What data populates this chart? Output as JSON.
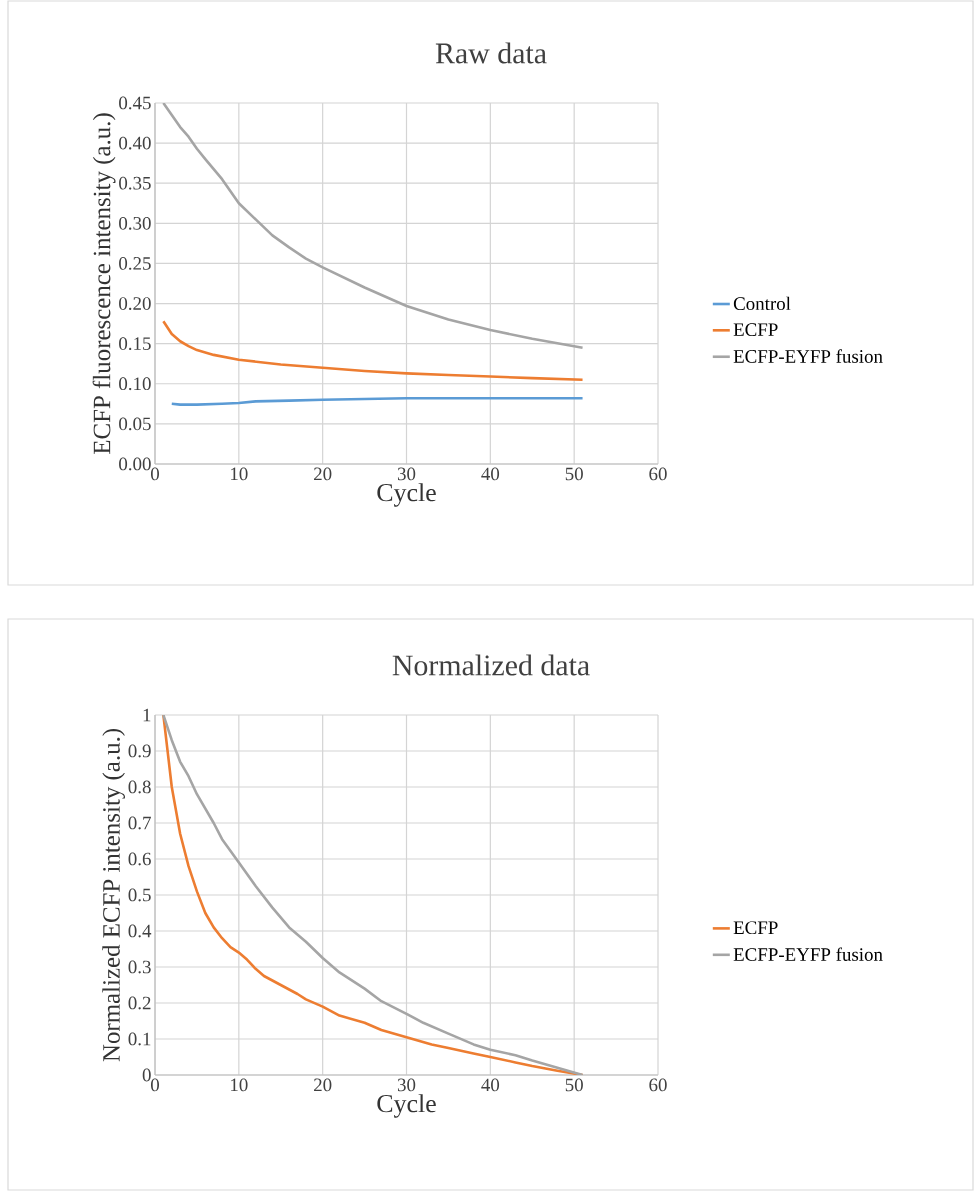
{
  "chart_data": [
    {
      "type": "line",
      "title": "Raw data",
      "xlabel": "Cycle",
      "ylabel": "ECFP fluorescence intensity (a.u.)",
      "xlim": [
        0,
        60
      ],
      "xticks": [
        0,
        10,
        20,
        30,
        40,
        50,
        60
      ],
      "ylim": [
        0,
        0.45
      ],
      "yticks": [
        {
          "value": 0,
          "label": "0.00"
        },
        0.05,
        {
          "value": 0.1,
          "label": "0.10"
        },
        0.15,
        {
          "value": 0.2,
          "label": "0.20"
        },
        0.25,
        {
          "value": 0.3,
          "label": "0.30"
        },
        0.35,
        {
          "value": 0.4,
          "label": "0.40"
        },
        0.45
      ],
      "grid": true,
      "legend": "right",
      "marker": "none",
      "series": [
        {
          "name": "Control",
          "color": "#5b9bd5",
          "x": [
            2,
            3,
            5,
            8,
            10,
            12,
            16,
            20,
            25,
            30,
            40,
            51
          ],
          "values": [
            0.075,
            0.074,
            0.074,
            0.075,
            0.076,
            0.078,
            0.079,
            0.08,
            0.081,
            0.082,
            0.082,
            0.082
          ]
        },
        {
          "name": "ECFP",
          "color": "#ed7d31",
          "x": [
            1,
            2,
            3,
            4,
            5,
            7,
            10,
            15,
            20,
            25,
            30,
            35,
            40,
            45,
            51
          ],
          "values": [
            0.178,
            0.162,
            0.153,
            0.147,
            0.142,
            0.136,
            0.13,
            0.124,
            0.12,
            0.116,
            0.113,
            0.111,
            0.109,
            0.107,
            0.105
          ]
        },
        {
          "name": "ECFP-EYFP fusion",
          "color": "#a5a5a5",
          "x": [
            1,
            2,
            3,
            4,
            5,
            6,
            8,
            10,
            12,
            14,
            16,
            18,
            20,
            25,
            30,
            35,
            40,
            45,
            51
          ],
          "values": [
            0.45,
            0.435,
            0.42,
            0.408,
            0.393,
            0.38,
            0.355,
            0.325,
            0.305,
            0.285,
            0.27,
            0.256,
            0.245,
            0.22,
            0.197,
            0.18,
            0.167,
            0.156,
            0.145
          ]
        }
      ]
    },
    {
      "type": "line",
      "title": "Normalized data",
      "xlabel": "Cycle",
      "ylabel": "Normalized ECFP intensity (a.u.)",
      "xlim": [
        0,
        60
      ],
      "xticks": [
        0,
        10,
        20,
        30,
        40,
        50,
        60
      ],
      "ylim": [
        0,
        1
      ],
      "yticks": [
        0,
        0.1,
        0.2,
        0.3,
        0.4,
        0.5,
        0.6,
        0.7,
        0.8,
        0.9,
        1
      ],
      "grid": true,
      "legend": "right",
      "marker": "none",
      "series": [
        {
          "name": "ECFP",
          "color": "#ed7d31",
          "x": [
            1,
            2,
            3,
            4,
            5,
            6,
            7,
            8,
            9,
            10,
            11,
            12,
            13,
            15,
            17,
            18,
            20,
            22,
            25,
            27,
            30,
            33,
            35,
            38,
            40,
            43,
            45,
            48,
            51
          ],
          "values": [
            1.0,
            0.8,
            0.67,
            0.58,
            0.51,
            0.45,
            0.41,
            0.38,
            0.355,
            0.34,
            0.32,
            0.295,
            0.275,
            0.25,
            0.225,
            0.21,
            0.19,
            0.165,
            0.145,
            0.125,
            0.105,
            0.085,
            0.075,
            0.06,
            0.05,
            0.035,
            0.025,
            0.012,
            0
          ]
        },
        {
          "name": "ECFP-EYFP fusion",
          "color": "#a5a5a5",
          "x": [
            1,
            2,
            3,
            4,
            5,
            7,
            8,
            10,
            12,
            14,
            16,
            18,
            20,
            22,
            25,
            27,
            30,
            32,
            35,
            38,
            40,
            43,
            45,
            48,
            51
          ],
          "values": [
            1.0,
            0.93,
            0.87,
            0.83,
            0.78,
            0.7,
            0.655,
            0.59,
            0.525,
            0.465,
            0.41,
            0.37,
            0.325,
            0.285,
            0.24,
            0.205,
            0.17,
            0.145,
            0.115,
            0.085,
            0.07,
            0.055,
            0.04,
            0.02,
            0
          ]
        }
      ]
    }
  ]
}
